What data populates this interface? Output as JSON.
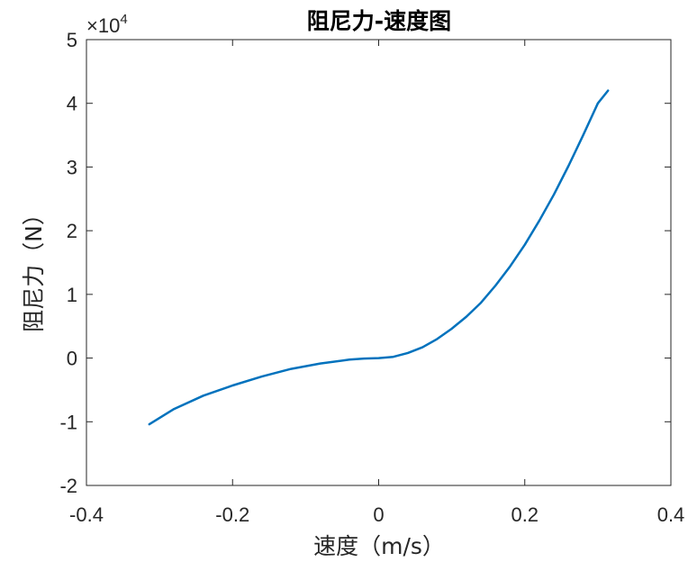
{
  "chart_data": {
    "type": "line",
    "title": "阻尼力-速度图",
    "xlabel": "速度（m/s）",
    "ylabel": "阻尼力（N）",
    "xlim": [
      -0.4,
      0.4
    ],
    "ylim": [
      -20000,
      50000
    ],
    "xticks": [
      -0.4,
      -0.2,
      0,
      0.2,
      0.4
    ],
    "xtick_labels": [
      "-0.4",
      "-0.2",
      "0",
      "0.2",
      "0.4"
    ],
    "yticks": [
      -20000,
      -10000,
      0,
      10000,
      20000,
      30000,
      40000,
      50000
    ],
    "ytick_labels": [
      "-2",
      "-1",
      "0",
      "1",
      "2",
      "3",
      "4",
      "5"
    ],
    "y_exponent": {
      "base": "×10",
      "power": "4"
    },
    "grid": false,
    "series": [
      {
        "color": "#0072BD",
        "x": [
          -0.314,
          -0.28,
          -0.24,
          -0.2,
          -0.16,
          -0.12,
          -0.08,
          -0.04,
          -0.02,
          0,
          0.02,
          0.04,
          0.06,
          0.08,
          0.1,
          0.12,
          0.14,
          0.16,
          0.18,
          0.2,
          0.22,
          0.24,
          0.26,
          0.28,
          0.3,
          0.314
        ],
        "y": [
          -10400,
          -8000,
          -5900,
          -4300,
          -2900,
          -1700,
          -850,
          -250,
          -80,
          0,
          200,
          800,
          1700,
          3000,
          4600,
          6500,
          8700,
          11400,
          14400,
          17800,
          21600,
          25700,
          30200,
          35000,
          40000,
          42000
        ]
      }
    ]
  }
}
